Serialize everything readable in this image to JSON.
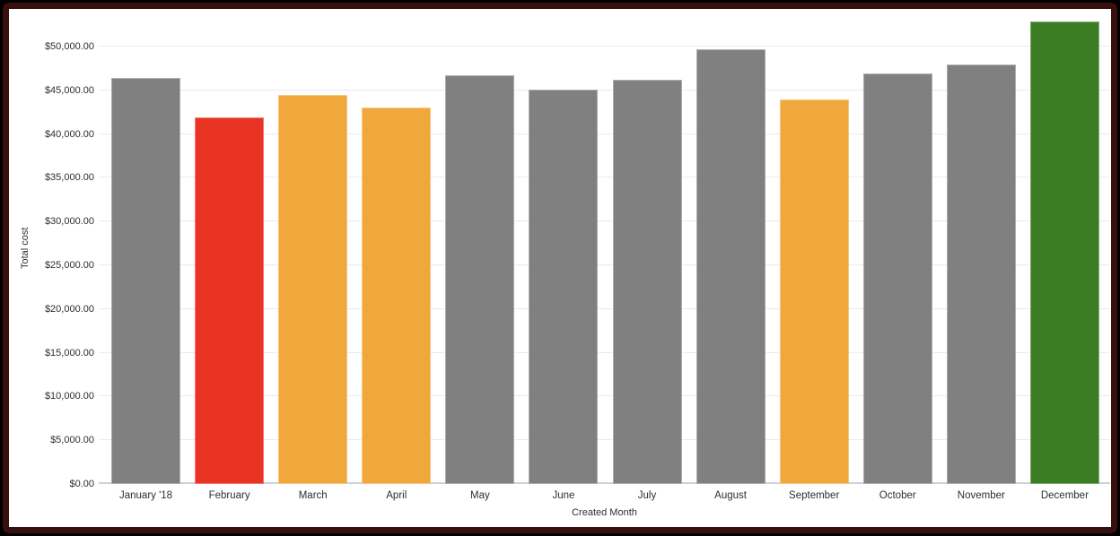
{
  "chart_data": {
    "type": "bar",
    "title": "",
    "xlabel": "Created Month",
    "ylabel": "Total cost",
    "categories": [
      "January '18",
      "February",
      "March",
      "April",
      "May",
      "June",
      "July",
      "August",
      "September",
      "October",
      "November",
      "December"
    ],
    "values": [
      46400,
      41900,
      44500,
      43000,
      46700,
      45100,
      46200,
      49700,
      44000,
      46900,
      48000,
      52900
    ],
    "bar_colors": [
      "#808080",
      "#ea3423",
      "#f0a73b",
      "#f0a73b",
      "#808080",
      "#808080",
      "#808080",
      "#808080",
      "#f0a73b",
      "#808080",
      "#808080",
      "#3b7d23"
    ],
    "colors": {
      "default_gray": "#808080",
      "red": "#ea3423",
      "orange": "#f0a73b",
      "green": "#3b7d23",
      "gridline": "#ebebeb",
      "axis_line": "#ccd1da",
      "tick_text": "#282f36",
      "frame_border": "#380f0f"
    },
    "yticks": [
      "$0.00",
      "$5,000.00",
      "$10,000.00",
      "$15,000.00",
      "$20,000.00",
      "$25,000.00",
      "$30,000.00",
      "$35,000.00",
      "$40,000.00",
      "$45,000.00",
      "$50,000.00"
    ],
    "ytick_values": [
      0,
      5000,
      10000,
      15000,
      20000,
      25000,
      30000,
      35000,
      40000,
      45000,
      50000
    ],
    "ylim": [
      0,
      54200
    ],
    "grid": true,
    "legend": false
  }
}
